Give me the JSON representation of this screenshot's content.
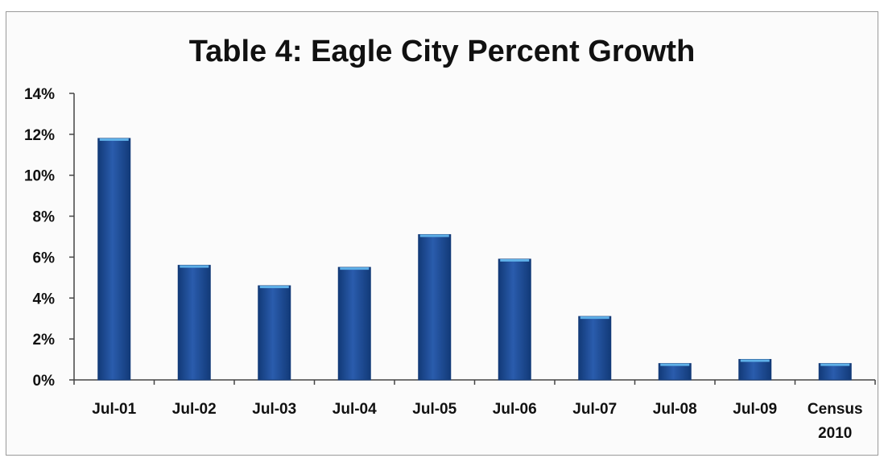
{
  "chart_data": {
    "type": "bar",
    "title": "Table 4: Eagle City Percent Growth",
    "xlabel": "",
    "ylabel": "",
    "categories": [
      "Jul-01",
      "Jul-02",
      "Jul-03",
      "Jul-04",
      "Jul-05",
      "Jul-06",
      "Jul-07",
      "Jul-08",
      "Jul-09",
      "Census 2010"
    ],
    "values": [
      11.8,
      5.6,
      4.6,
      5.5,
      7.1,
      5.9,
      3.1,
      0.8,
      1.0,
      0.8
    ],
    "y_ticks": [
      "0%",
      "2%",
      "4%",
      "6%",
      "8%",
      "10%",
      "12%",
      "14%"
    ],
    "ylim": [
      0,
      14
    ],
    "grid": false,
    "legend": "none",
    "colors": {
      "bar": "#1f4e97",
      "bar_dark": "#123a78",
      "bar_top": "#5fb0e8",
      "axis": "#444444"
    }
  }
}
